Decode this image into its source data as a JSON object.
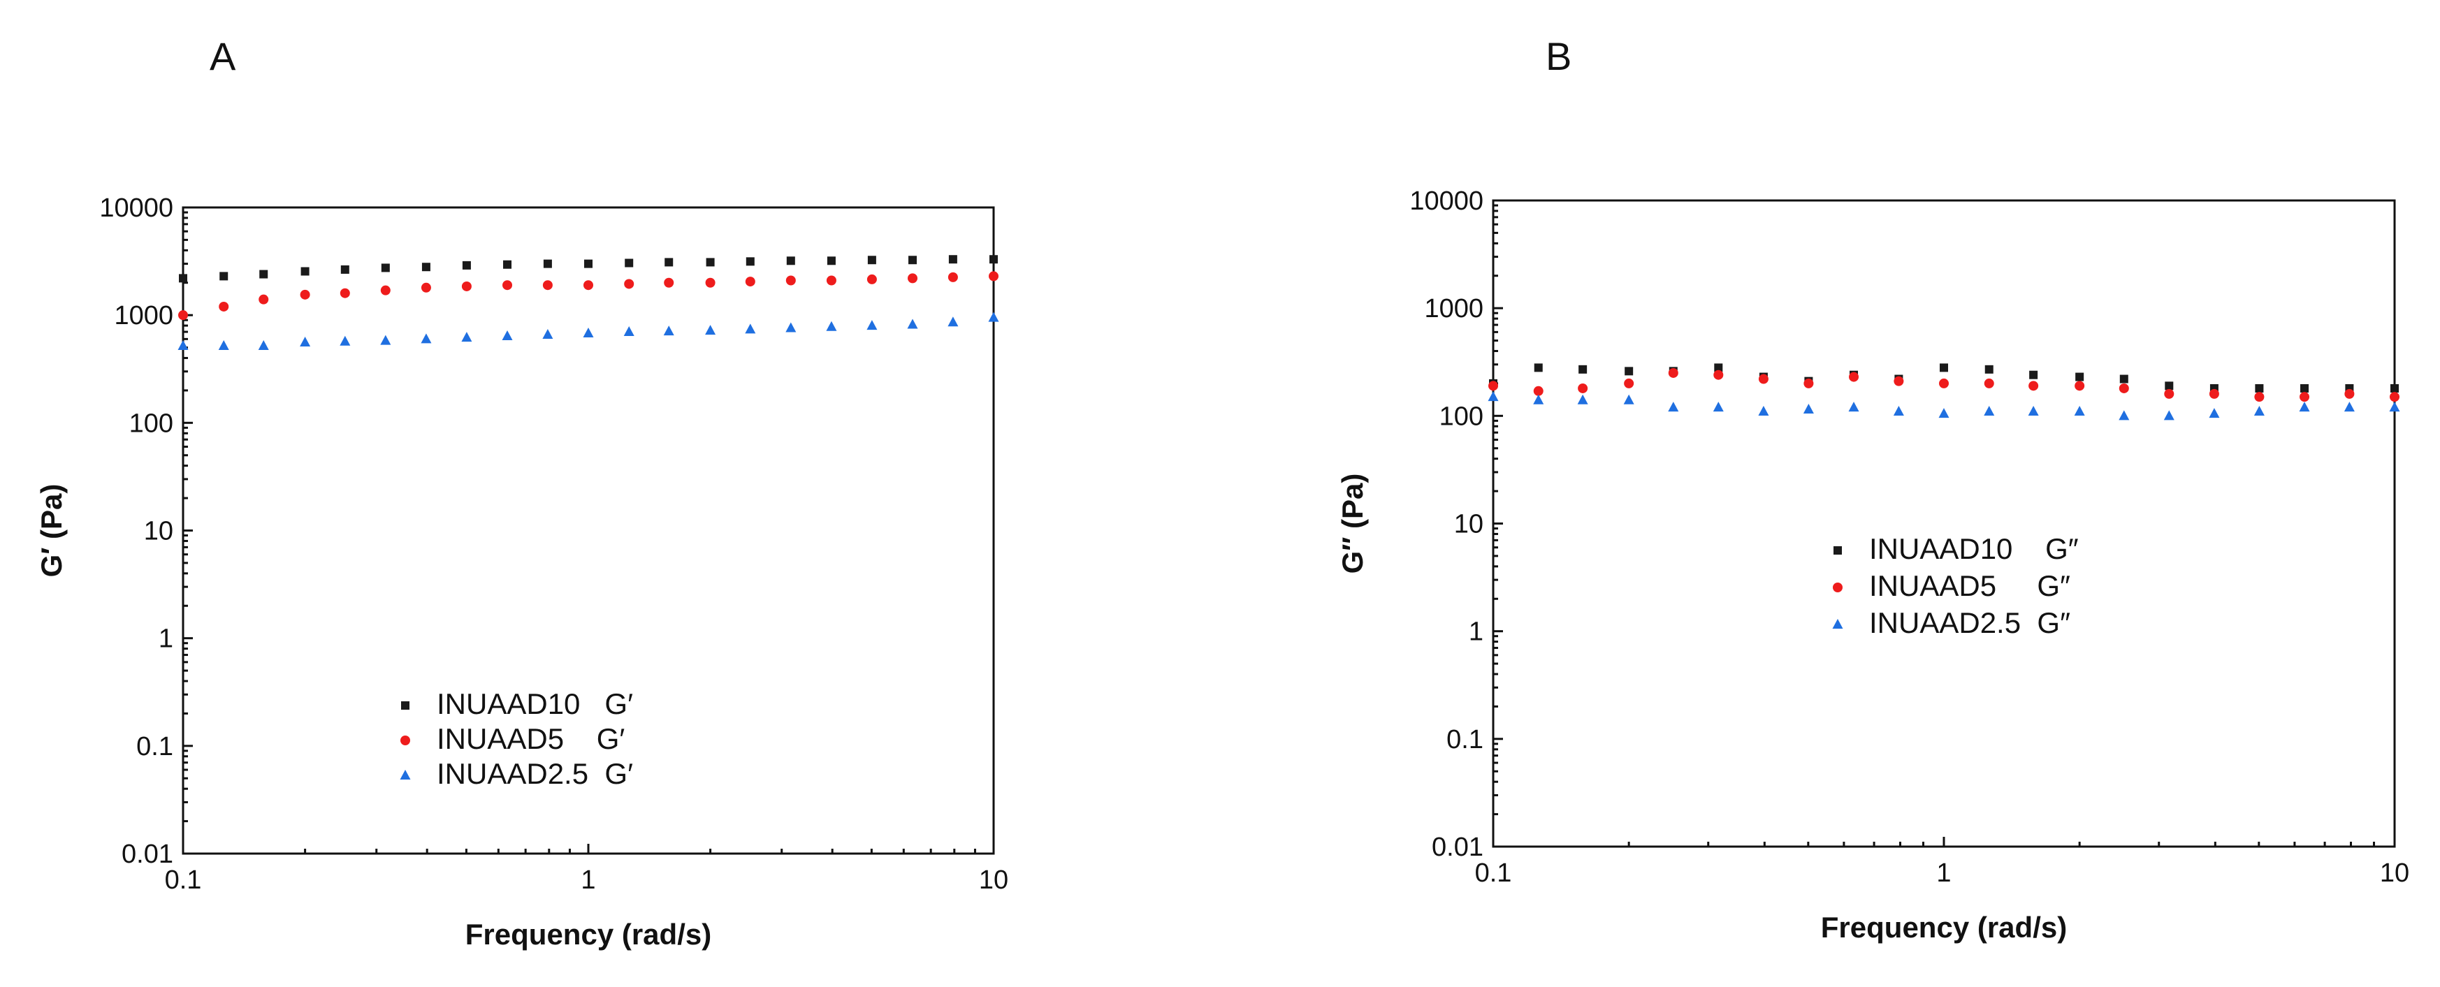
{
  "chart_data": [
    {
      "panel": "A",
      "type": "scatter",
      "title": "",
      "xlabel": "Frequency (rad/s)",
      "ylabel": "G′ (Pa)",
      "xscale": "log",
      "yscale": "log",
      "xlim": [
        0.1,
        10
      ],
      "ylim": [
        0.01,
        10000
      ],
      "xticks": [
        "0.1",
        "1",
        "10"
      ],
      "yticks": [
        "0.01",
        "0.1",
        "1",
        "10",
        "100",
        "1000",
        "10000"
      ],
      "legend_position": "lower-center",
      "x": [
        0.1,
        0.126,
        0.158,
        0.2,
        0.251,
        0.316,
        0.398,
        0.501,
        0.631,
        0.794,
        1.0,
        1.26,
        1.58,
        2.0,
        2.51,
        3.16,
        3.98,
        5.01,
        6.31,
        7.94,
        10.0
      ],
      "series": [
        {
          "name": "INUAAD10   G′",
          "marker": "square",
          "color": "#1a1a1a",
          "values": [
            2200,
            2300,
            2400,
            2550,
            2650,
            2750,
            2800,
            2900,
            2950,
            3000,
            3000,
            3050,
            3100,
            3100,
            3150,
            3200,
            3200,
            3250,
            3250,
            3300,
            3300
          ]
        },
        {
          "name": "INUAAD5    G′",
          "marker": "circle",
          "color": "#ee1c1c",
          "values": [
            1000,
            1200,
            1400,
            1550,
            1600,
            1700,
            1800,
            1850,
            1900,
            1900,
            1900,
            1950,
            2000,
            2000,
            2050,
            2100,
            2100,
            2150,
            2200,
            2250,
            2300
          ]
        },
        {
          "name": "INUAAD2.5  G′",
          "marker": "triangle",
          "color": "#1f6fe0",
          "values": [
            520,
            520,
            520,
            560,
            570,
            580,
            600,
            620,
            640,
            660,
            680,
            700,
            710,
            720,
            740,
            760,
            780,
            800,
            820,
            860,
            950
          ]
        }
      ]
    },
    {
      "panel": "B",
      "type": "scatter",
      "title": "",
      "xlabel": "Frequency (rad/s)",
      "ylabel": "G″ (Pa)",
      "xscale": "log",
      "yscale": "log",
      "xlim": [
        0.1,
        10
      ],
      "ylim": [
        0.01,
        10000
      ],
      "xticks": [
        "0.1",
        "1",
        "10"
      ],
      "yticks": [
        "0.01",
        "0.1",
        "1",
        "10",
        "100",
        "1000",
        "10000"
      ],
      "legend_position": "center",
      "x": [
        0.1,
        0.126,
        0.158,
        0.2,
        0.251,
        0.316,
        0.398,
        0.501,
        0.631,
        0.794,
        1.0,
        1.26,
        1.58,
        2.0,
        2.51,
        3.16,
        3.98,
        5.01,
        6.31,
        7.94,
        10.0
      ],
      "series": [
        {
          "name": "INUAAD10    G″",
          "marker": "square",
          "color": "#1a1a1a",
          "values": [
            200,
            280,
            270,
            260,
            260,
            280,
            230,
            210,
            240,
            220,
            280,
            270,
            240,
            230,
            220,
            190,
            180,
            180,
            180,
            180,
            180
          ]
        },
        {
          "name": "INUAAD5     G″",
          "marker": "circle",
          "color": "#ee1c1c",
          "values": [
            190,
            170,
            180,
            200,
            250,
            240,
            220,
            200,
            230,
            210,
            200,
            200,
            190,
            190,
            180,
            160,
            160,
            150,
            150,
            160,
            150
          ]
        },
        {
          "name": "INUAAD2.5  G″",
          "marker": "triangle",
          "color": "#1f6fe0",
          "values": [
            150,
            140,
            140,
            140,
            120,
            120,
            110,
            115,
            120,
            110,
            105,
            110,
            110,
            110,
            100,
            100,
            105,
            110,
            120,
            120,
            120
          ]
        }
      ]
    }
  ]
}
